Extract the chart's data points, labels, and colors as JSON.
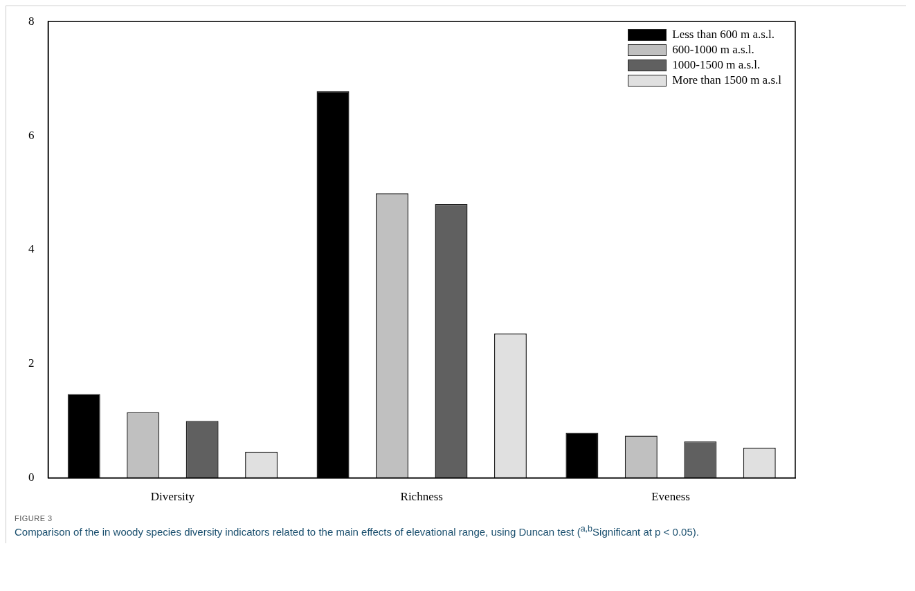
{
  "chart_data": {
    "type": "bar",
    "categories": [
      "Diversity",
      "Richness",
      "Eveness"
    ],
    "series": [
      {
        "name": "Less than 600 m a.s.l.",
        "color": "#000000",
        "values": [
          1.47,
          6.78,
          0.79
        ]
      },
      {
        "name": "600-1000 m a.s.l.",
        "color": "#c0c0c0",
        "values": [
          1.15,
          4.99,
          0.74
        ]
      },
      {
        "name": "1000-1500 m a.s.l.",
        "color": "#606060",
        "values": [
          1.0,
          4.8,
          0.64
        ]
      },
      {
        "name": "More than 1500 m a.s.l",
        "color": "#e0e0e0",
        "values": [
          0.46,
          2.53,
          0.53
        ]
      }
    ],
    "ylim": [
      0,
      8
    ],
    "yticks": [
      0,
      2,
      4,
      6,
      8
    ],
    "grid": false,
    "legend": "top right",
    "annotations": [
      "FIGURE 3",
      "Comparison of the in woody species diversity indicators related to the main effects of elevational range, using Duncan test ($^{a,b}$Significant at p < 0.05)."
    ]
  }
}
